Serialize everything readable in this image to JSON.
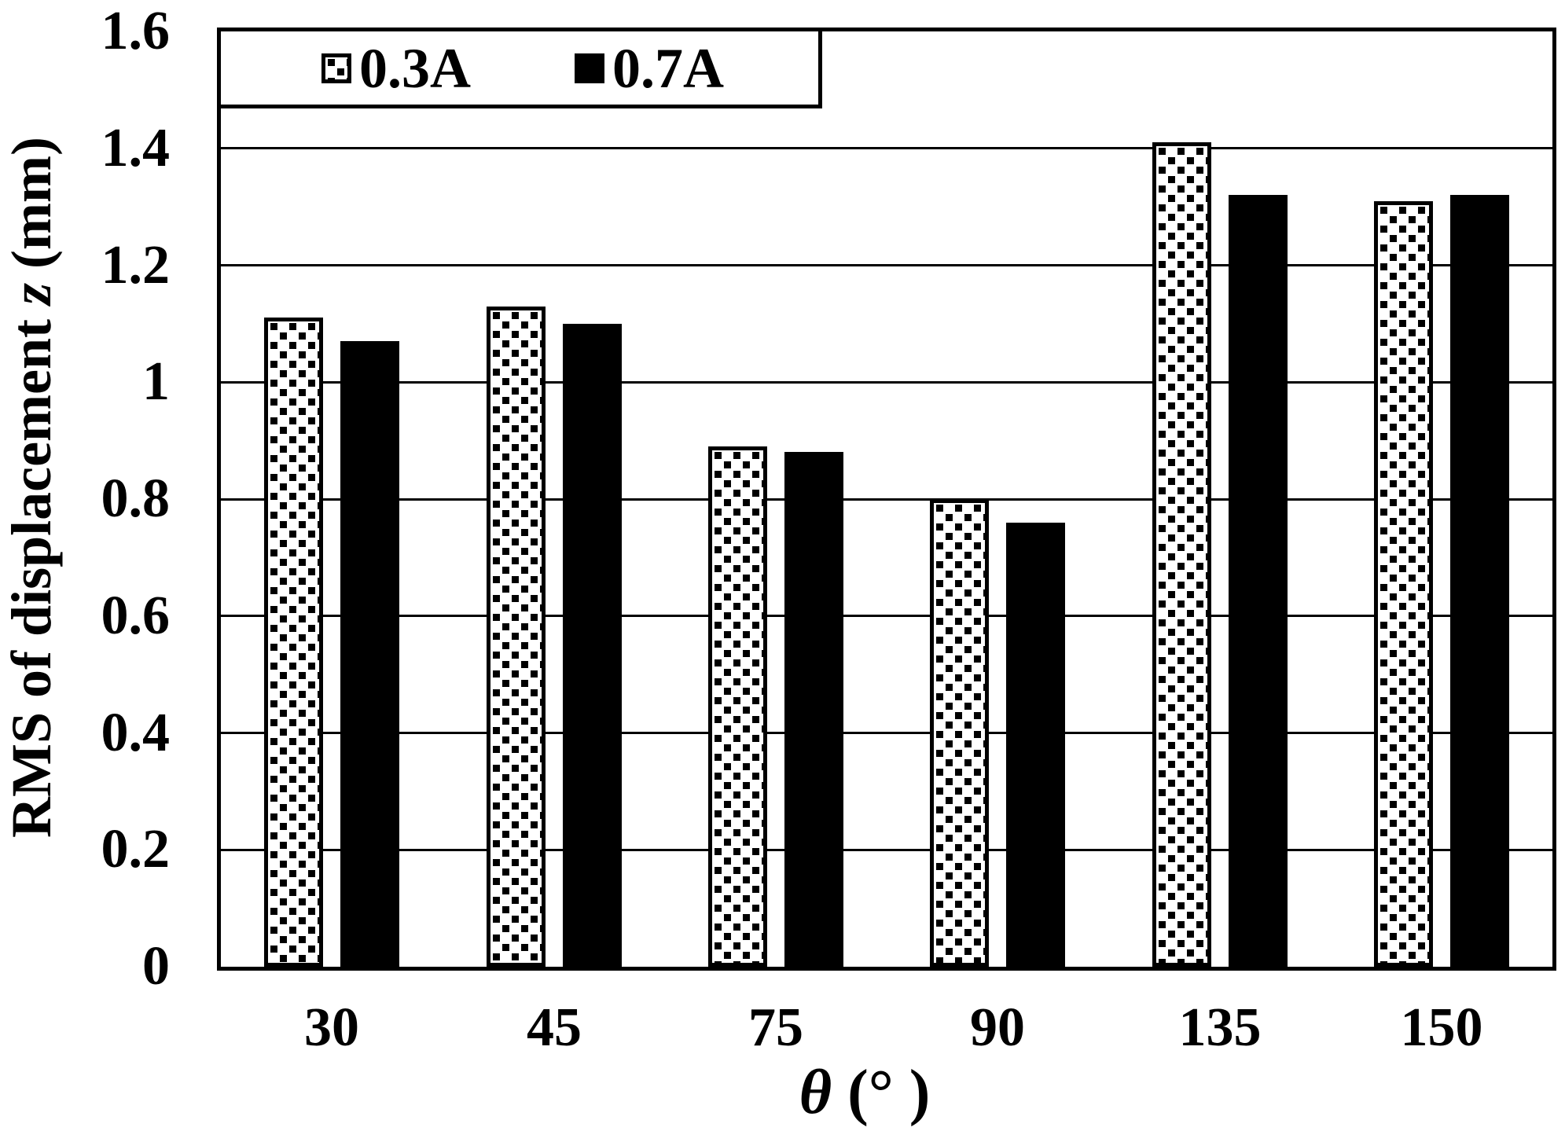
{
  "figure": {
    "background": "#ffffff",
    "ink": "#000000"
  },
  "chart_data": {
    "type": "bar",
    "title": "",
    "categories": [
      "30",
      "45",
      "75",
      "90",
      "135",
      "150"
    ],
    "series": [
      {
        "name": "0.3A",
        "style": "white-with-black-square-dot-pattern",
        "values": [
          1.11,
          1.13,
          0.89,
          0.8,
          1.41,
          1.31
        ]
      },
      {
        "name": "0.7A",
        "style": "solid-black",
        "values": [
          1.07,
          1.1,
          0.88,
          0.76,
          1.32,
          1.32
        ]
      }
    ],
    "xlabel": "θ (° )",
    "ylabel": "RMS of displacement z (mm)",
    "ylim": [
      0,
      1.6
    ],
    "ytick_step": 0.2,
    "yticks": [
      "1.6",
      "1.4",
      "1.2",
      "1",
      "0.8",
      "0.6",
      "0.4",
      "0.2",
      "0"
    ],
    "grid": "horizontal",
    "legend_position": "top-left-inside-plot"
  },
  "axis_titles": {
    "x_symbol": "θ",
    "x_rest": " (° )",
    "y_prefix": "RMS of displacement ",
    "y_italic": "z",
    "y_suffix": " (mm)"
  }
}
